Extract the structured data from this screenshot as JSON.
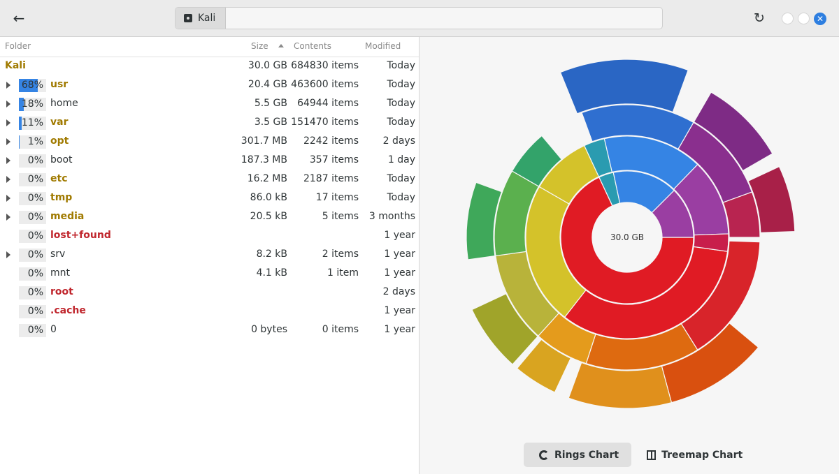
{
  "header": {
    "location": "Kali",
    "disk_icon": "disk-icon",
    "back_icon": "back-arrow-icon",
    "refresh_icon": "refresh-icon"
  },
  "table": {
    "columns": {
      "folder": "Folder",
      "size": "Size",
      "contents": "Contents",
      "modified": "Modified"
    },
    "root": {
      "name": "Kali",
      "size": "30.0 GB",
      "contents": "684830 items",
      "modified": "Today"
    },
    "rows": [
      {
        "pct": 68,
        "pct_label": "68%",
        "name": "usr",
        "size": "20.4 GB",
        "contents": "463600 items",
        "modified": "Today",
        "style": "gold",
        "expandable": true
      },
      {
        "pct": 18,
        "pct_label": "18%",
        "name": "home",
        "size": "5.5 GB",
        "contents": "64944 items",
        "modified": "Today",
        "style": "norm",
        "expandable": true
      },
      {
        "pct": 11,
        "pct_label": "11%",
        "name": "var",
        "size": "3.5 GB",
        "contents": "151470 items",
        "modified": "Today",
        "style": "gold",
        "expandable": true
      },
      {
        "pct": 1,
        "pct_label": "1%",
        "name": "opt",
        "size": "301.7 MB",
        "contents": "2242 items",
        "modified": "2 days",
        "style": "gold",
        "expandable": true
      },
      {
        "pct": 0,
        "pct_label": "0%",
        "name": "boot",
        "size": "187.3 MB",
        "contents": "357 items",
        "modified": "1 day",
        "style": "norm",
        "expandable": true
      },
      {
        "pct": 0,
        "pct_label": "0%",
        "name": "etc",
        "size": "16.2 MB",
        "contents": "2187 items",
        "modified": "Today",
        "style": "gold",
        "expandable": true
      },
      {
        "pct": 0,
        "pct_label": "0%",
        "name": "tmp",
        "size": "86.0 kB",
        "contents": "17 items",
        "modified": "Today",
        "style": "gold",
        "expandable": true
      },
      {
        "pct": 0,
        "pct_label": "0%",
        "name": "media",
        "size": "20.5 kB",
        "contents": "5 items",
        "modified": "3 months",
        "style": "gold",
        "expandable": true
      },
      {
        "pct": 0,
        "pct_label": "0%",
        "name": "lost+found",
        "size": "",
        "contents": "",
        "modified": "1 year",
        "style": "red",
        "expandable": false
      },
      {
        "pct": 0,
        "pct_label": "0%",
        "name": "srv",
        "size": "8.2 kB",
        "contents": "2 items",
        "modified": "1 year",
        "style": "norm",
        "expandable": true
      },
      {
        "pct": 0,
        "pct_label": "0%",
        "name": "mnt",
        "size": "4.1 kB",
        "contents": "1 item",
        "modified": "1 year",
        "style": "norm",
        "expandable": false
      },
      {
        "pct": 0,
        "pct_label": "0%",
        "name": "root",
        "size": "",
        "contents": "",
        "modified": "2 days",
        "style": "red",
        "expandable": false
      },
      {
        "pct": 0,
        "pct_label": "0%",
        "name": ".cache",
        "size": "",
        "contents": "",
        "modified": "1 year",
        "style": "red",
        "expandable": false
      },
      {
        "pct": 0,
        "pct_label": "0%",
        "name": "0",
        "size": "0 bytes",
        "contents": "0 items",
        "modified": "1 year",
        "style": "norm",
        "expandable": false
      }
    ]
  },
  "chart": {
    "center_label": "30.0 GB"
  },
  "tabs": {
    "rings": "Rings Chart",
    "treemap": "Treemap Chart"
  },
  "colors": {
    "accent": "#3584e4",
    "gold_text": "#a07a00",
    "red_text": "#c0262d"
  }
}
